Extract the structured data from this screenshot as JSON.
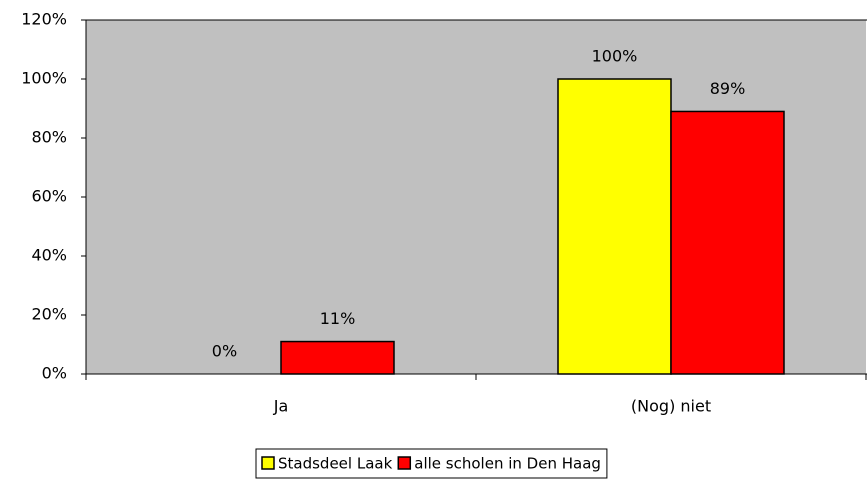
{
  "chart_data": {
    "type": "bar",
    "categories": [
      "Ja",
      "(Nog) niet"
    ],
    "series": [
      {
        "name": "Stadsdeel Laak",
        "color": "#ffff00",
        "values": [
          0,
          100
        ],
        "value_labels": [
          "0%",
          "100%"
        ]
      },
      {
        "name": "alle scholen in Den Haag",
        "color": "#ff0000",
        "values": [
          11,
          89
        ],
        "value_labels": [
          "11%",
          "89%"
        ]
      }
    ],
    "ylim": [
      0,
      120
    ],
    "yticks": [
      {
        "value": 0,
        "label": "0%"
      },
      {
        "value": 20,
        "label": "20%"
      },
      {
        "value": 40,
        "label": "40%"
      },
      {
        "value": 60,
        "label": "60%"
      },
      {
        "value": 80,
        "label": "80%"
      },
      {
        "value": 100,
        "label": "100%"
      },
      {
        "value": 120,
        "label": "120%"
      }
    ],
    "plot_background": "#c0c0c0"
  }
}
